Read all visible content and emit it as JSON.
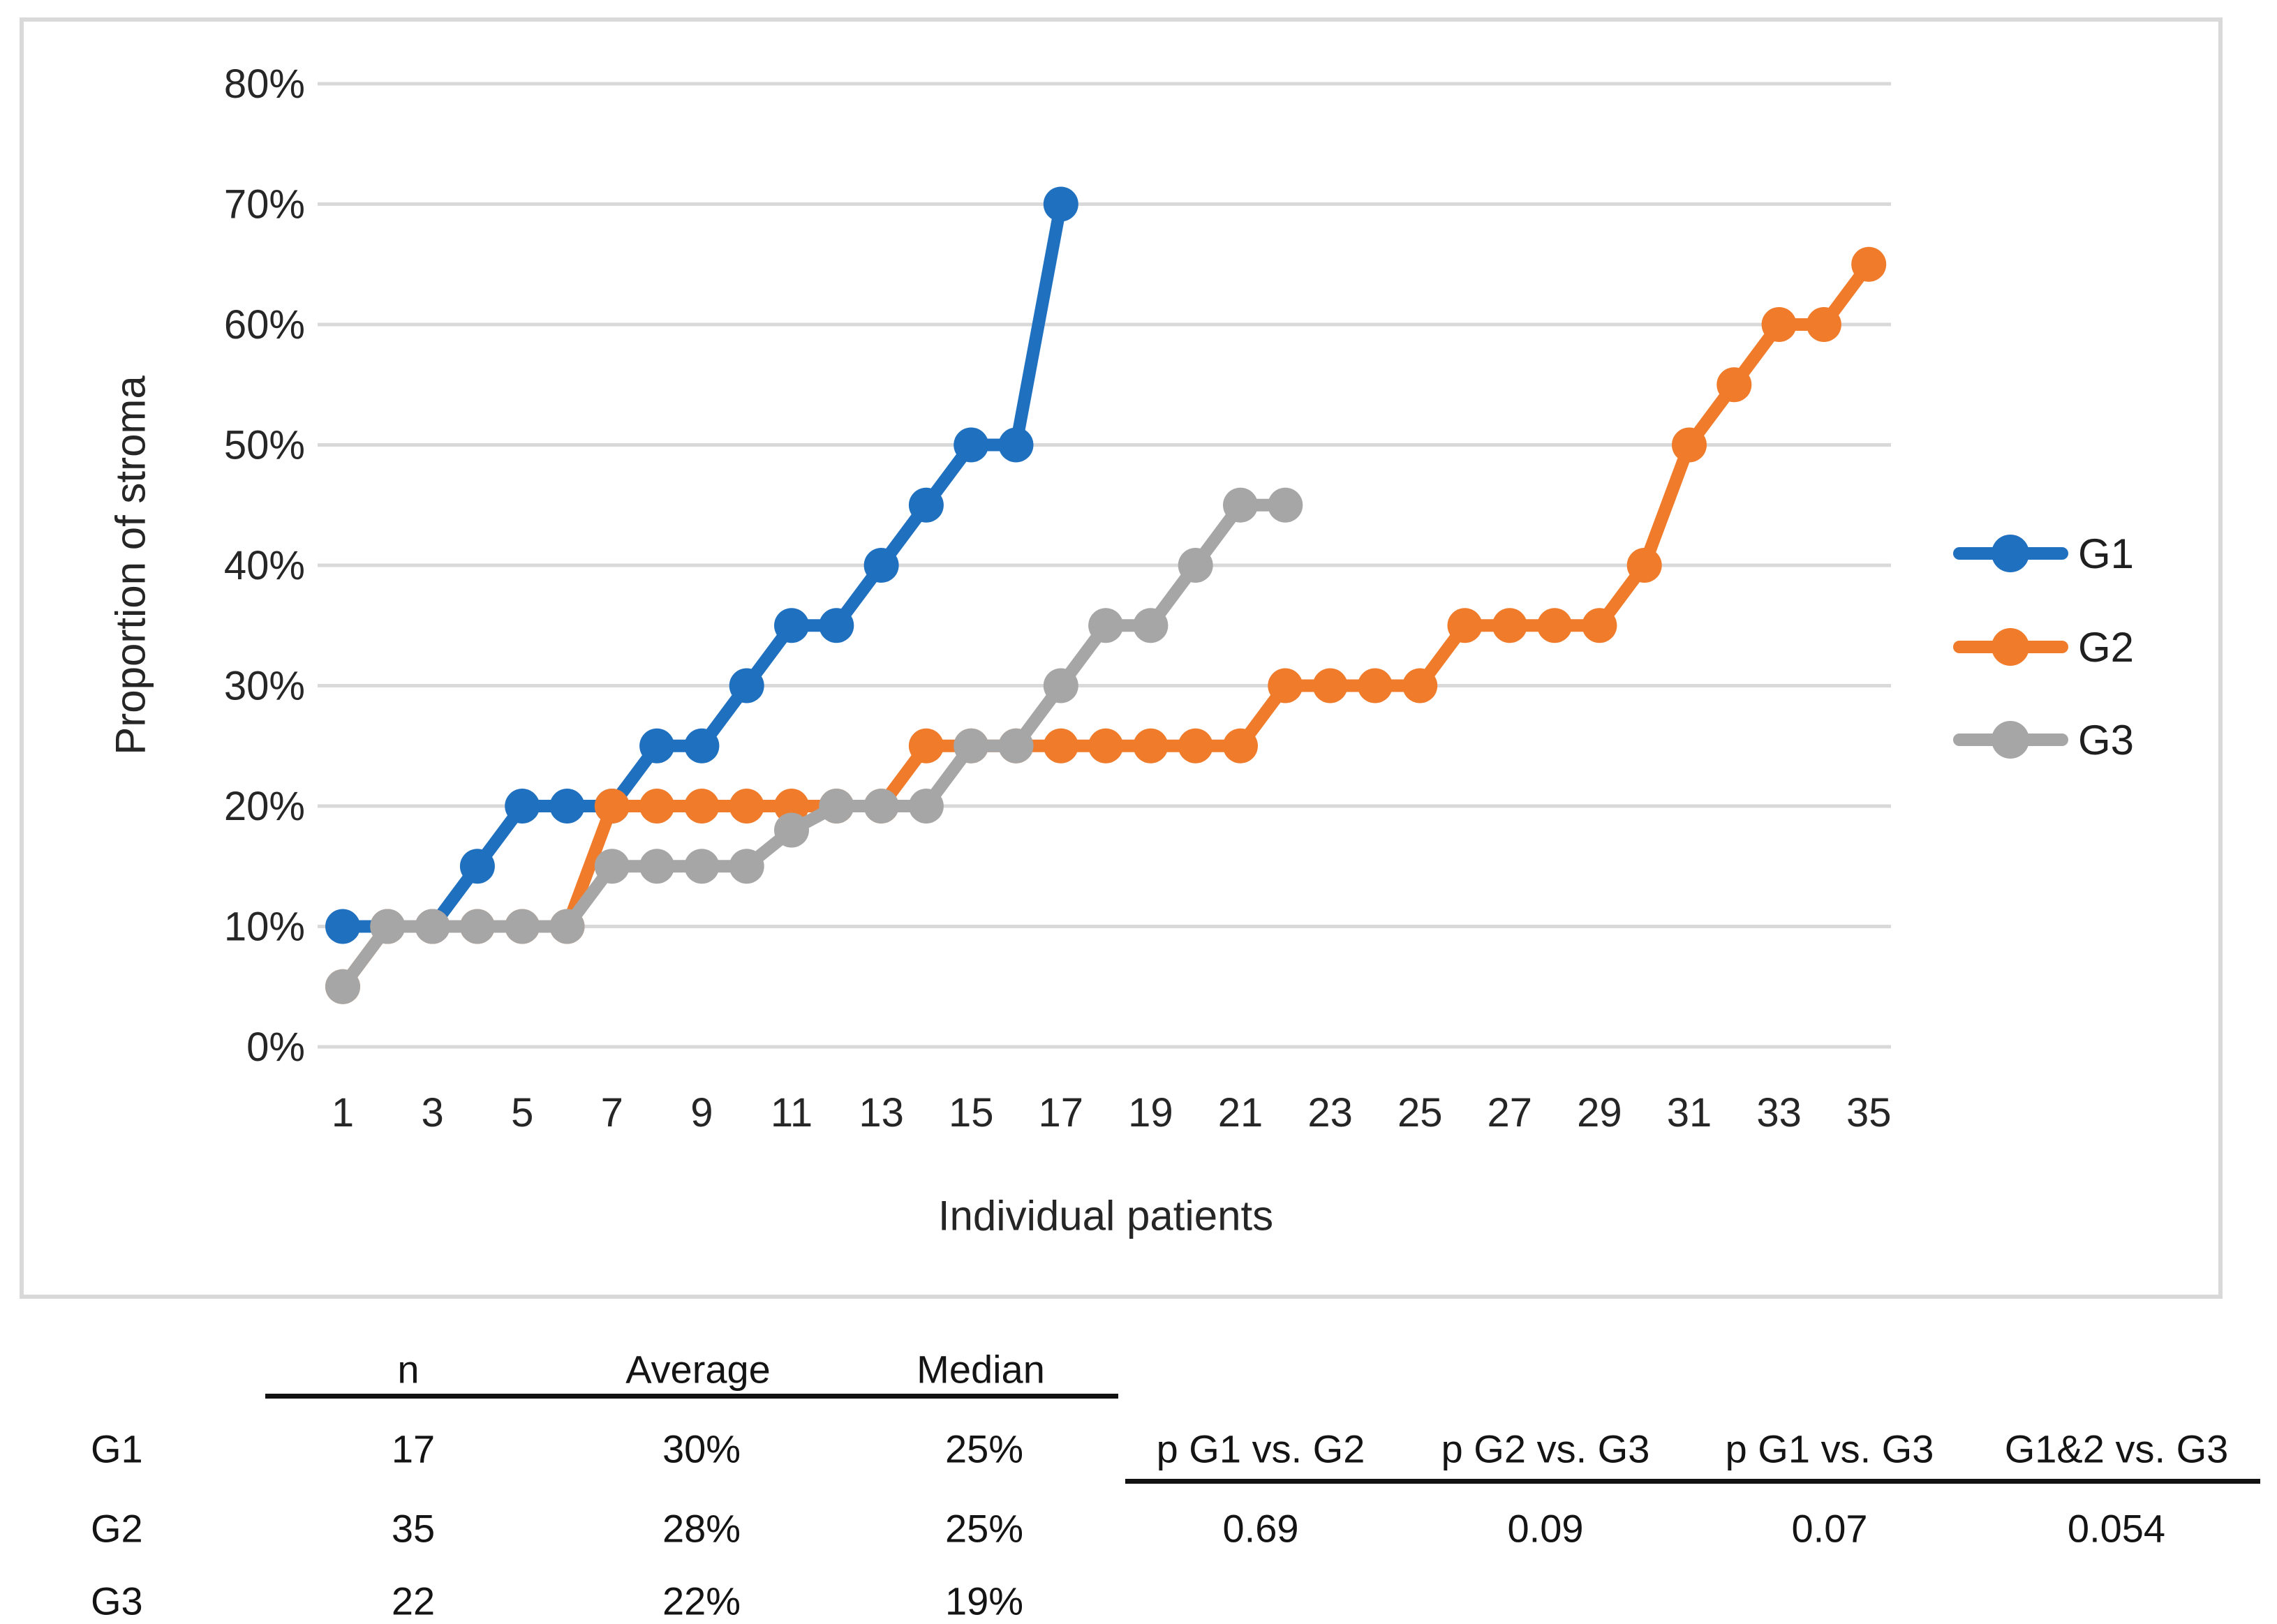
{
  "chart_data": {
    "type": "line",
    "title": "",
    "xlabel": "Individual patients",
    "ylabel": "Proportion of stroma",
    "ylim": [
      0,
      80
    ],
    "xlim": [
      1,
      35
    ],
    "grid": "horizontal",
    "legend_position": "right",
    "y_ticks": [
      "0%",
      "10%",
      "20%",
      "30%",
      "40%",
      "50%",
      "60%",
      "70%",
      "80%"
    ],
    "y_tick_values": [
      0,
      10,
      20,
      30,
      40,
      50,
      60,
      70,
      80
    ],
    "x_tick_labels": [
      1,
      3,
      5,
      7,
      9,
      11,
      13,
      15,
      17,
      19,
      21,
      23,
      25,
      27,
      29,
      31,
      33,
      35
    ],
    "series": [
      {
        "name": "G1",
        "color": "#2070c0",
        "values": [
          10,
          10,
          10,
          15,
          20,
          20,
          20,
          25,
          25,
          30,
          35,
          35,
          40,
          45,
          50,
          50,
          70
        ]
      },
      {
        "name": "G2",
        "color": "#f07b2a",
        "values": [
          5,
          10,
          10,
          10,
          10,
          10,
          20,
          20,
          20,
          20,
          20,
          20,
          20,
          25,
          25,
          25,
          25,
          25,
          25,
          25,
          25,
          30,
          30,
          30,
          30,
          35,
          35,
          35,
          35,
          40,
          50,
          55,
          60,
          60,
          65
        ]
      },
      {
        "name": "G3",
        "color": "#a6a6a6",
        "values": [
          5,
          10,
          10,
          10,
          10,
          10,
          15,
          15,
          15,
          15,
          18,
          20,
          20,
          20,
          25,
          25,
          30,
          35,
          35,
          40,
          45,
          45
        ]
      }
    ]
  },
  "stats_table": {
    "headers": {
      "n": "n",
      "average": "Average",
      "median": "Median"
    },
    "rows": [
      {
        "label": "G1",
        "n": "17",
        "average": "30%",
        "median": "25%"
      },
      {
        "label": "G2",
        "n": "35",
        "average": "28%",
        "median": "25%"
      },
      {
        "label": "G3",
        "n": "22",
        "average": "22%",
        "median": "19%"
      }
    ]
  },
  "p_table": {
    "headers": [
      "p G1 vs. G2",
      "p G2 vs. G3",
      "p G1 vs. G3",
      "G1&2 vs. G3"
    ],
    "values": [
      "0.69",
      "0.09",
      "0.07",
      "0.054"
    ]
  },
  "colors": {
    "grid": "#d9d9d9",
    "chart_border": "#d9d9d9",
    "axis_text": "#262626",
    "table_rule": "#111111"
  }
}
